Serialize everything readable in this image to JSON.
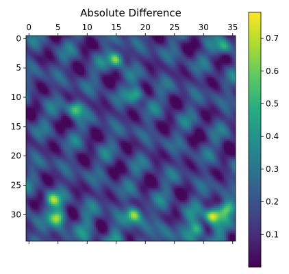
{
  "chart_data": {
    "type": "heatmap",
    "title": "Absolute Difference",
    "xlabel": "",
    "ylabel": "",
    "x_ticks": [
      0,
      5,
      10,
      15,
      20,
      25,
      30,
      35
    ],
    "y_ticks": [
      0,
      5,
      10,
      15,
      20,
      25,
      30
    ],
    "x_range": [
      -0.5,
      35.5
    ],
    "y_range": [
      -0.5,
      34.5
    ],
    "y_axis_inverted": true,
    "x_tick_position": "top",
    "colormap": "viridis",
    "colorbar": {
      "ticks": [
        0.1,
        0.2,
        0.3,
        0.4,
        0.5,
        0.6,
        0.7
      ],
      "range": [
        0.0,
        0.78
      ],
      "placement": "right"
    },
    "grid": false,
    "hotspots": [
      {
        "x": 15,
        "y": 3.5,
        "value": 0.7
      },
      {
        "x": 31.5,
        "y": 30.2,
        "value": 0.78
      },
      {
        "x": 18,
        "y": 30,
        "value": 0.62
      },
      {
        "x": 5,
        "y": 30.5,
        "value": 0.62
      },
      {
        "x": 34,
        "y": 29,
        "value": 0.6
      },
      {
        "x": 8,
        "y": 12,
        "value": 0.6
      },
      {
        "x": 18.5,
        "y": 9.5,
        "value": 0.58
      },
      {
        "x": 33.5,
        "y": 1.5,
        "value": 0.5
      },
      {
        "x": 4,
        "y": 27.5,
        "value": 0.55
      },
      {
        "x": 29,
        "y": 32.5,
        "value": 0.55
      }
    ]
  }
}
